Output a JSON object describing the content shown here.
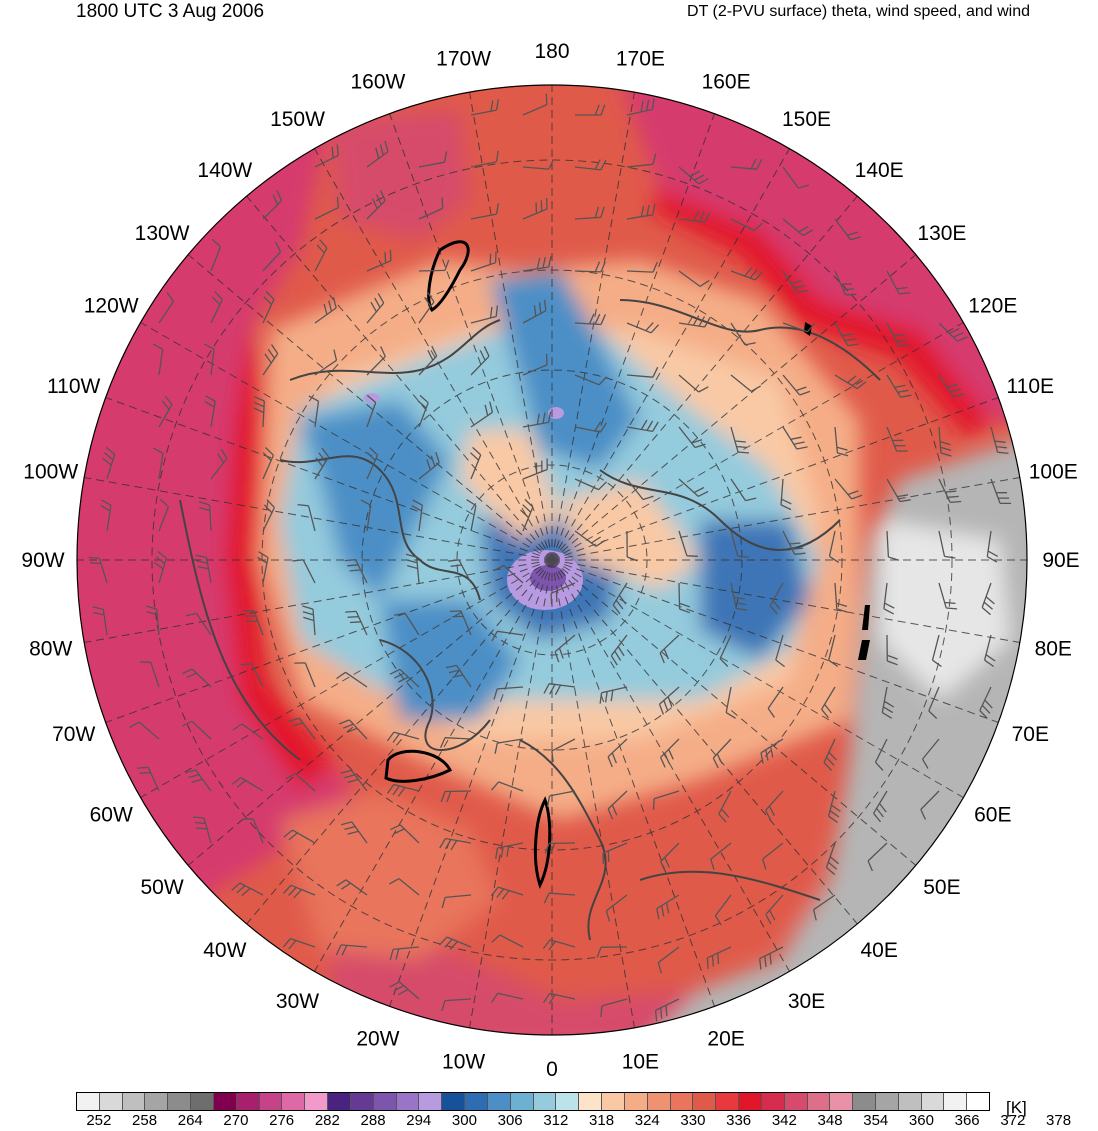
{
  "header": {
    "valid_time": "1800 UTC 3 Aug 2006",
    "product": "DT (2-PVU surface) theta, wind speed, and wind"
  },
  "map": {
    "projection": "north-polar-stereographic",
    "center_longitude_bottom": "0",
    "longitude_labels": [
      "180",
      "170E",
      "160E",
      "150E",
      "140E",
      "130E",
      "120E",
      "110E",
      "100E",
      "90E",
      "80E",
      "70E",
      "60E",
      "50E",
      "40E",
      "30E",
      "20E",
      "10E",
      "0",
      "10W",
      "20W",
      "30W",
      "40W",
      "50W",
      "60W",
      "70W",
      "80W",
      "90W",
      "100W",
      "110W",
      "120W",
      "130W",
      "140W",
      "150W",
      "160W",
      "170W"
    ],
    "regions": [
      {
        "name": "polar-vortex-core",
        "value_k": 290,
        "color": "#9f79c9"
      },
      {
        "name": "arctic-trough",
        "value_k": 306,
        "color": "#3d74b6"
      },
      {
        "name": "arctic-cold-pool",
        "value_k": 318,
        "color": "#8dc8d6"
      },
      {
        "name": "midlatitude-ridge",
        "value_k": 336,
        "color": "#f09e7e"
      },
      {
        "name": "subtropical-jet",
        "value_k": 352,
        "color": "#e8202a"
      },
      {
        "name": "subtropical-high",
        "value_k": 360,
        "color": "#d63a6e"
      },
      {
        "name": "asian-monsoon-anticyclone",
        "value_k": 372,
        "color": "#b5b5b5"
      }
    ]
  },
  "colorbar": {
    "unit": "[K]",
    "tick_labels": [
      "252",
      "258",
      "264",
      "270",
      "276",
      "282",
      "288",
      "294",
      "300",
      "306",
      "312",
      "318",
      "324",
      "330",
      "336",
      "342",
      "348",
      "354",
      "360",
      "366",
      "372",
      "378"
    ],
    "colors": [
      "#f2f2f2",
      "#d9d9d9",
      "#bfbfbf",
      "#a5a5a5",
      "#8c8c8c",
      "#6e6e6e",
      "#80004f",
      "#a6206e",
      "#c6438a",
      "#dd6aa6",
      "#f19acb",
      "#4a227f",
      "#643a95",
      "#7e55ad",
      "#9a74c6",
      "#b79ae0",
      "#17519a",
      "#2f6db3",
      "#4b8fc6",
      "#6cb0d2",
      "#94cbdd",
      "#bde3ea",
      "#fde4c8",
      "#f9c9a5",
      "#f4ad87",
      "#ee9271",
      "#e8755c",
      "#e05a4a",
      "#e83a3c",
      "#e2162b",
      "#d62d4e",
      "#d64b6b",
      "#dd6f8a",
      "#e991a6",
      "#8c8c8c",
      "#a5a5a5",
      "#bfbfbf",
      "#d9d9d9",
      "#f2f2f2",
      "#ffffff"
    ]
  }
}
